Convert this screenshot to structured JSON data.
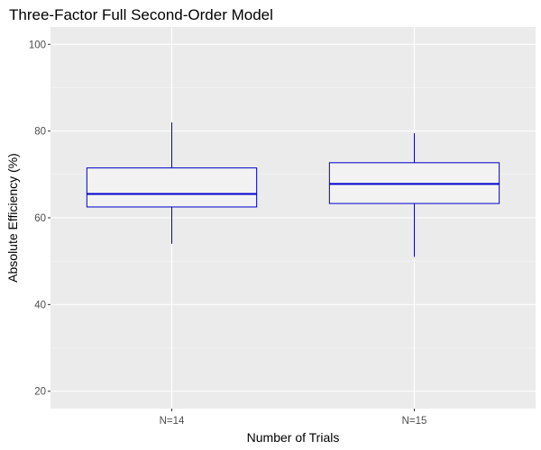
{
  "chart_data": {
    "type": "box",
    "title": "Three-Factor Full Second-Order Model",
    "xlabel": "Number of Trials",
    "ylabel": "Absolute Efficiency (%)",
    "categories": [
      "N=14",
      "N=15"
    ],
    "boxes": [
      {
        "category": "N=14",
        "whisker_low": 54,
        "q1": 62.5,
        "median": 65.5,
        "q3": 71.5,
        "whisker_high": 82
      },
      {
        "category": "N=15",
        "whisker_low": 51,
        "q1": 63.3,
        "median": 67.8,
        "q3": 72.7,
        "whisker_high": 79.5
      }
    ],
    "yticks": [
      20,
      40,
      60,
      80,
      100
    ],
    "ylim": [
      16,
      104
    ],
    "grid": true,
    "legend": "none",
    "colors": {
      "panel_background": "#ebebeb",
      "grid_major": "#ffffff",
      "grid_minor": "#f5f5f5",
      "box_fill": "#f2f2f2",
      "box_stroke": "#0000cd",
      "tick_text": "#4d4d4d",
      "text": "#000000"
    }
  }
}
